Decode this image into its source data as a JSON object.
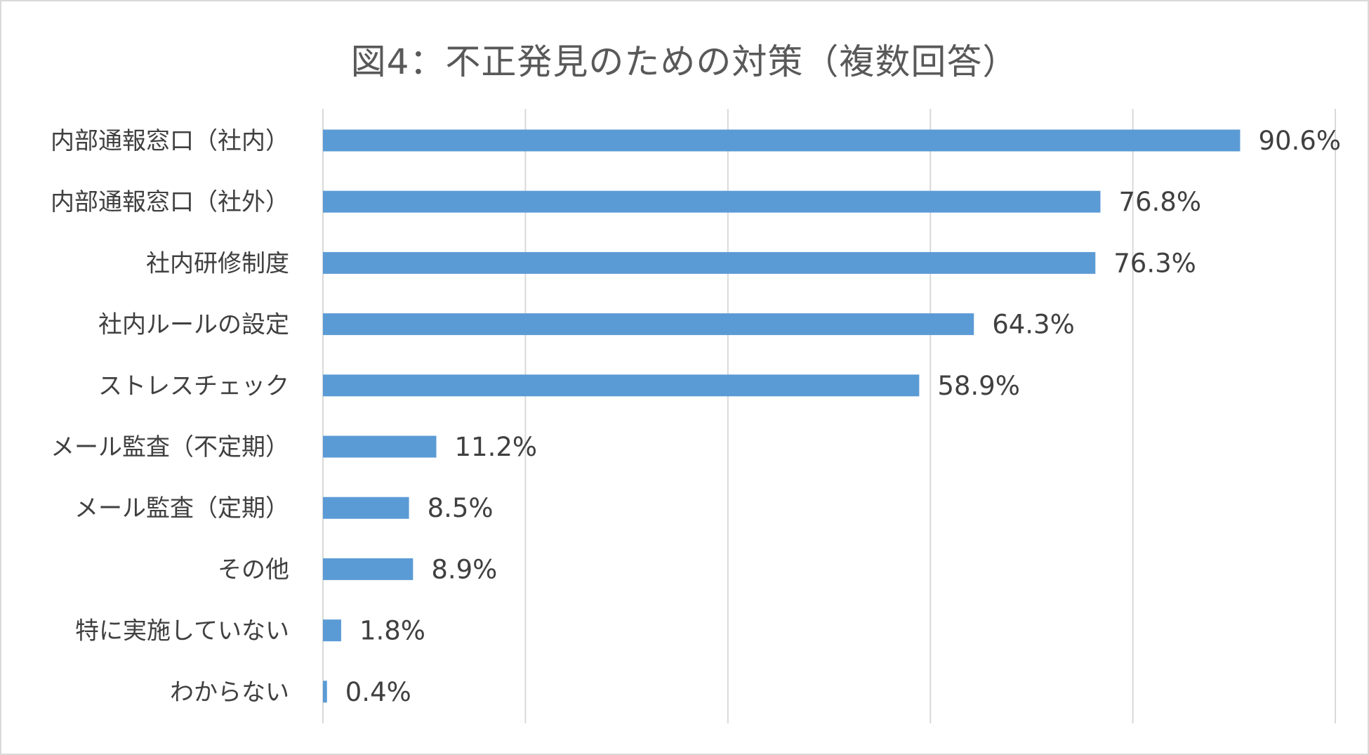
{
  "chart_data": {
    "type": "bar",
    "orientation": "horizontal",
    "title": "図4：不正発見のための対策（複数回答）",
    "categories": [
      "内部通報窓口（社内）",
      "内部通報窓口（社外）",
      "社内研修制度",
      "社内ルールの設定",
      "ストレスチェック",
      "メール監査（不定期）",
      "メール監査（定期）",
      "その他",
      "特に実施していない",
      "わからない"
    ],
    "values": [
      90.6,
      76.8,
      76.3,
      64.3,
      58.9,
      11.2,
      8.5,
      8.9,
      1.8,
      0.4
    ],
    "value_labels": [
      "90.6%",
      "76.8%",
      "76.3%",
      "64.3%",
      "58.9%",
      "11.2%",
      "8.5%",
      "8.9%",
      "1.8%",
      "0.4%"
    ],
    "xlim": [
      0,
      100
    ],
    "xlabel": "",
    "ylabel": "",
    "grid": "vertical",
    "legend": "none",
    "bar_color": "#5b9bd5"
  }
}
